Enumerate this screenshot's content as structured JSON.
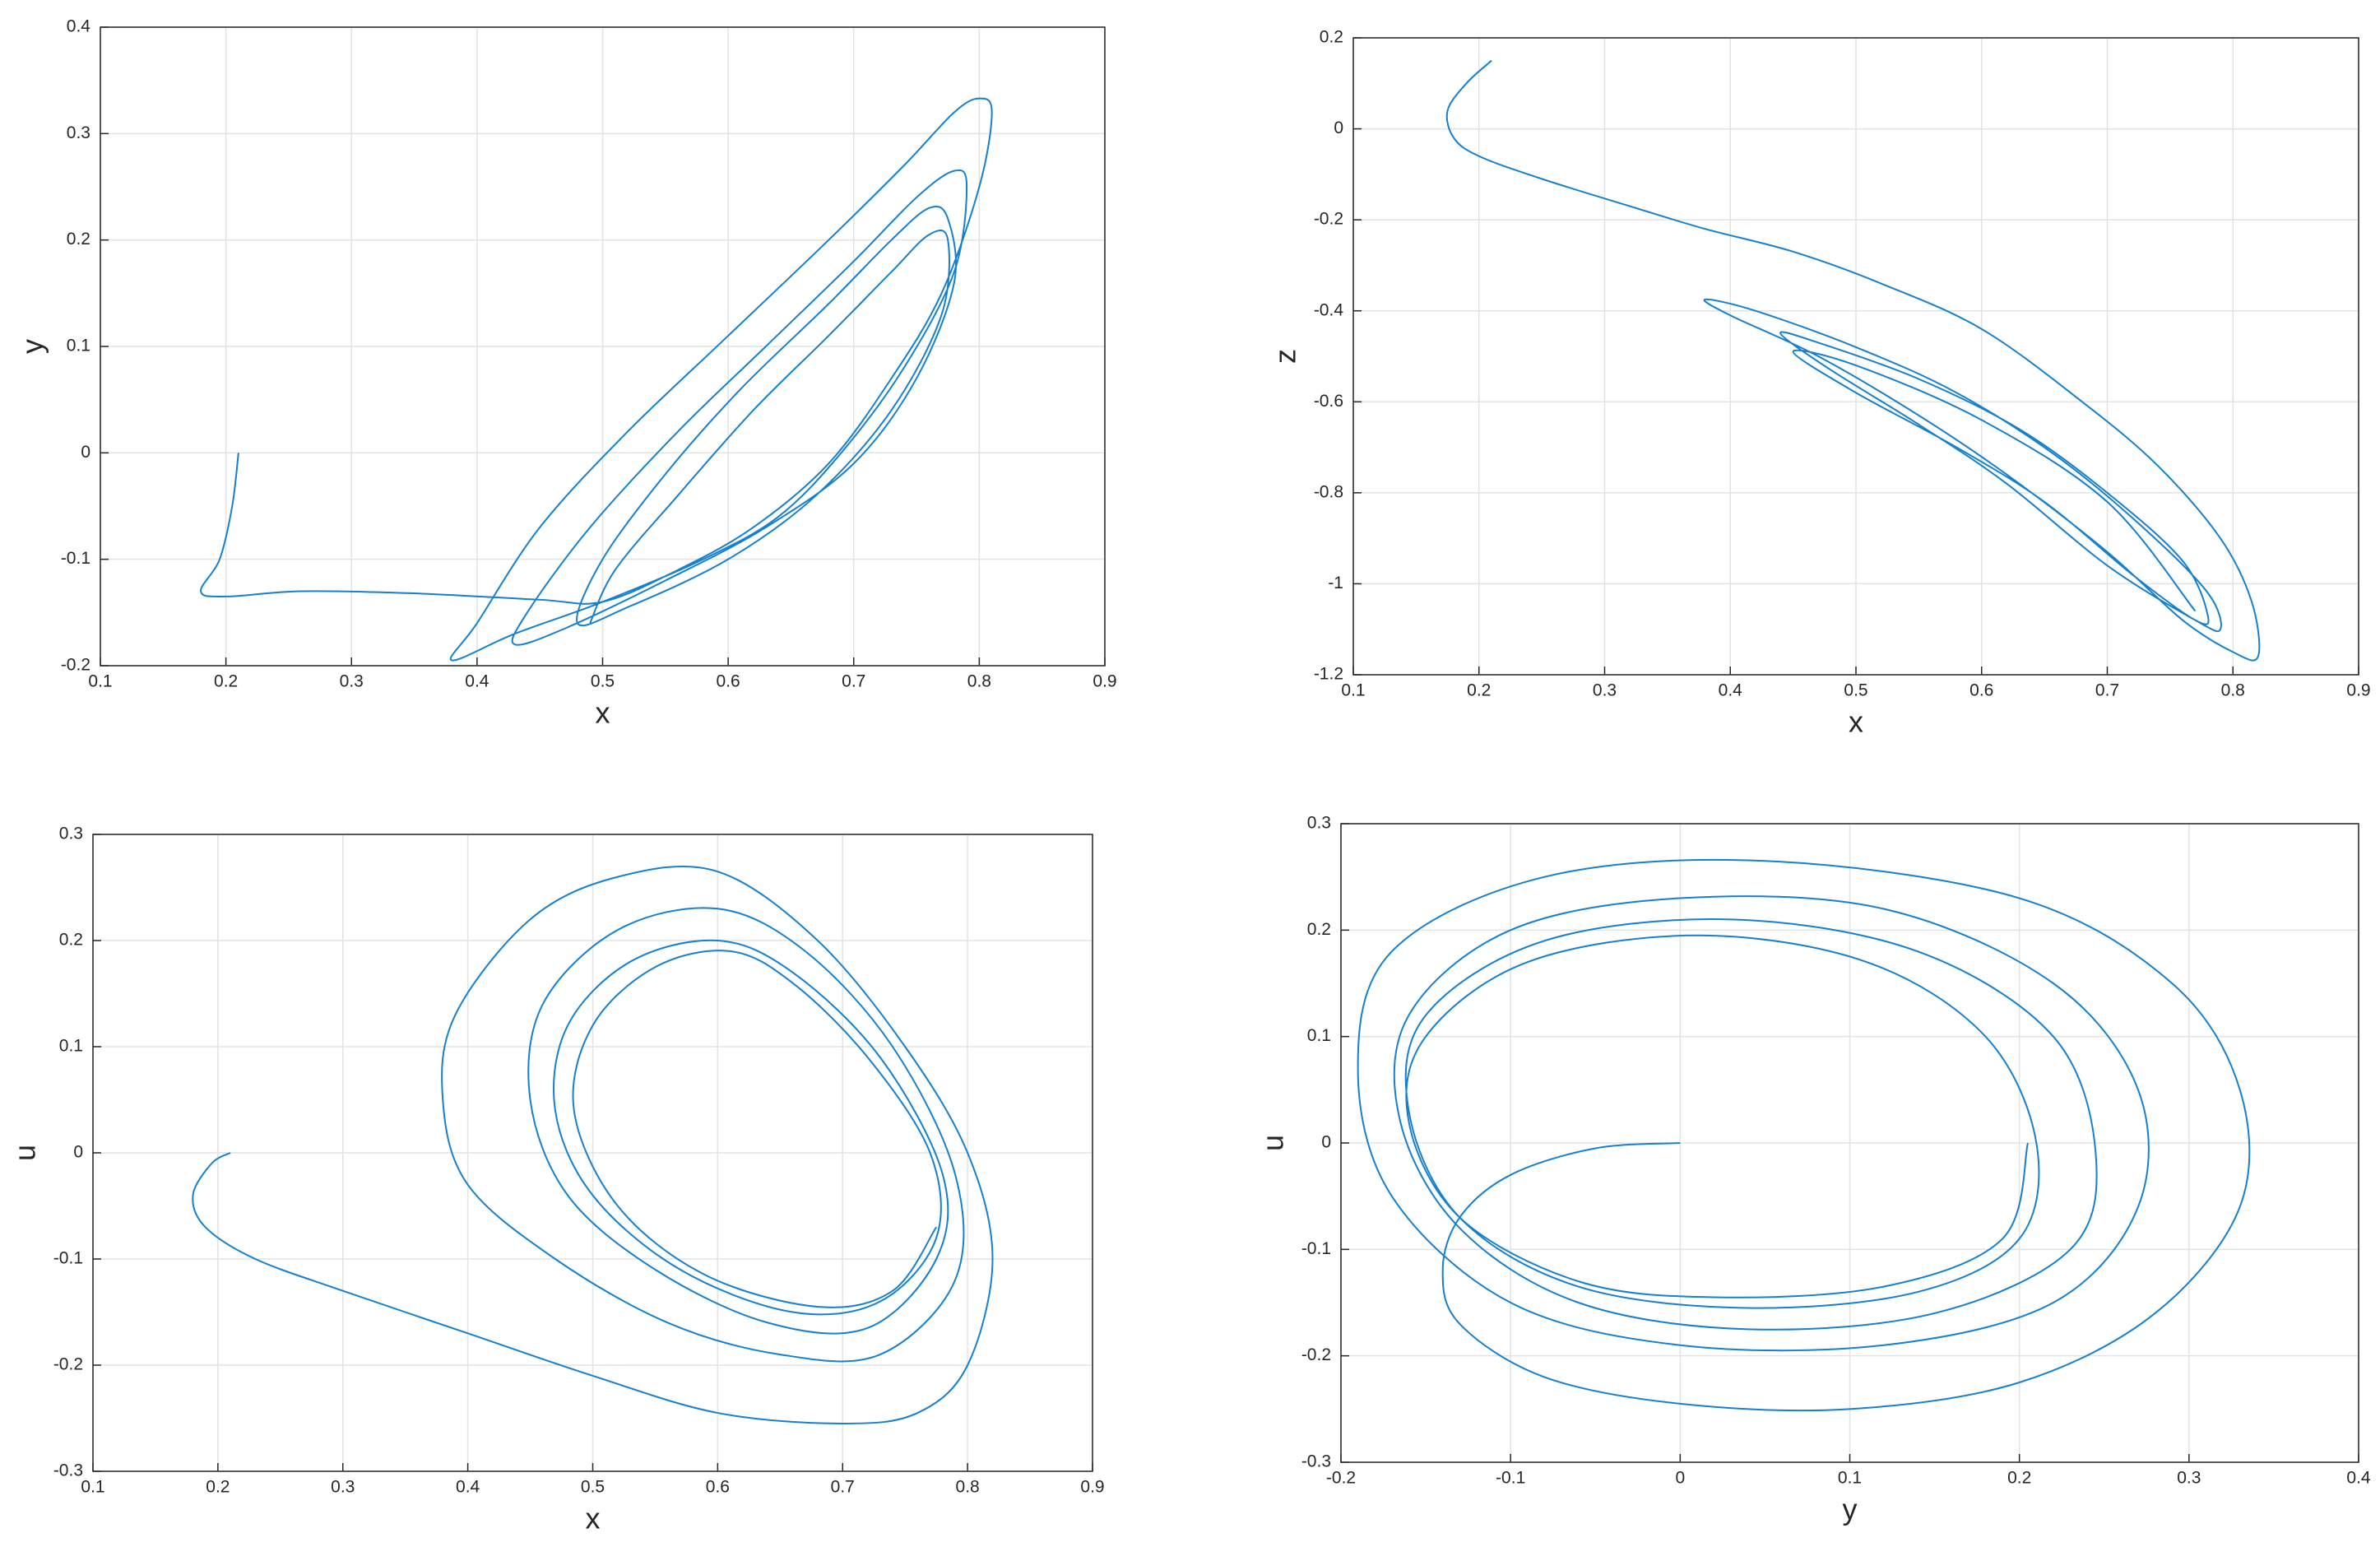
{
  "chart_data": [
    {
      "type": "line",
      "xlabel": "x",
      "ylabel": "y",
      "xlim": [
        0.1,
        0.9
      ],
      "ylim": [
        -0.2,
        0.4
      ],
      "xticks": [
        0.1,
        0.2,
        0.3,
        0.4,
        0.5,
        0.6,
        0.7,
        0.8,
        0.9
      ],
      "yticks": [
        -0.2,
        -0.1,
        0,
        0.1,
        0.2,
        0.3,
        0.4
      ],
      "grid": true,
      "series": [
        {
          "color": "#1580cf",
          "x": [
            0.21,
            0.205,
            0.195,
            0.18,
            0.2,
            0.26,
            0.35,
            0.45,
            0.5,
            0.56,
            0.62,
            0.68,
            0.73,
            0.77,
            0.8,
            0.81,
            0.8,
            0.78,
            0.74,
            0.68,
            0.6,
            0.52,
            0.45,
            0.4,
            0.38,
            0.43,
            0.5,
            0.58,
            0.64,
            0.69,
            0.74,
            0.78,
            0.79,
            0.78,
            0.75,
            0.7,
            0.63,
            0.56,
            0.49,
            0.44,
            0.43,
            0.47,
            0.55,
            0.63,
            0.7,
            0.75,
            0.78,
            0.775,
            0.76,
            0.73,
            0.68,
            0.61,
            0.55,
            0.5,
            0.48,
            0.52,
            0.6,
            0.67,
            0.73,
            0.77,
            0.775,
            0.76,
            0.73,
            0.68,
            0.62,
            0.56,
            0.51,
            0.49
          ],
          "values": [
            0,
            -0.05,
            -0.1,
            -0.13,
            -0.135,
            -0.13,
            -0.132,
            -0.138,
            -0.14,
            -0.11,
            -0.07,
            -0.01,
            0.07,
            0.15,
            0.25,
            0.32,
            0.333,
            0.32,
            0.27,
            0.2,
            0.11,
            0.02,
            -0.07,
            -0.16,
            -0.195,
            -0.17,
            -0.14,
            -0.1,
            -0.06,
            0,
            0.08,
            0.17,
            0.25,
            0.265,
            0.24,
            0.18,
            0.1,
            0.02,
            -0.07,
            -0.15,
            -0.18,
            -0.165,
            -0.12,
            -0.07,
            -0.01,
            0.07,
            0.16,
            0.22,
            0.23,
            0.2,
            0.14,
            0.06,
            -0.02,
            -0.1,
            -0.16,
            -0.145,
            -0.1,
            -0.04,
            0.04,
            0.13,
            0.2,
            0.205,
            0.17,
            0.11,
            0.04,
            -0.04,
            -0.11,
            -0.16
          ]
        }
      ]
    },
    {
      "type": "line",
      "xlabel": "x",
      "ylabel": "z",
      "xlim": [
        0.1,
        0.9
      ],
      "ylim": [
        -1.2,
        0.2
      ],
      "xticks": [
        0.1,
        0.2,
        0.3,
        0.4,
        0.5,
        0.6,
        0.7,
        0.8,
        0.9
      ],
      "yticks": [
        -1.2,
        -1,
        -0.8,
        -0.6,
        -0.4,
        -0.2,
        0,
        0.2
      ],
      "grid": true,
      "series": [
        {
          "color": "#1580cf",
          "x": [
            0.21,
            0.19,
            0.175,
            0.18,
            0.2,
            0.25,
            0.32,
            0.38,
            0.45,
            0.52,
            0.6,
            0.68,
            0.74,
            0.79,
            0.815,
            0.82,
            0.8,
            0.76,
            0.7,
            0.62,
            0.55,
            0.47,
            0.4,
            0.38,
            0.42,
            0.5,
            0.58,
            0.66,
            0.73,
            0.78,
            0.79,
            0.77,
            0.7,
            0.62,
            0.55,
            0.48,
            0.44,
            0.47,
            0.55,
            0.63,
            0.7,
            0.76,
            0.78,
            0.77,
            0.72,
            0.65,
            0.58,
            0.5,
            0.45,
            0.5,
            0.6,
            0.7,
            0.77
          ],
          "values": [
            0.15,
            0.1,
            0.04,
            -0.02,
            -0.06,
            -0.11,
            -0.17,
            -0.22,
            -0.27,
            -0.34,
            -0.44,
            -0.6,
            -0.74,
            -0.9,
            -1.04,
            -1.16,
            -1.15,
            -1.08,
            -0.93,
            -0.76,
            -0.63,
            -0.5,
            -0.41,
            -0.375,
            -0.4,
            -0.48,
            -0.58,
            -0.72,
            -0.88,
            -1.02,
            -1.1,
            -1.08,
            -0.96,
            -0.78,
            -0.65,
            -0.53,
            -0.45,
            -0.47,
            -0.55,
            -0.66,
            -0.8,
            -0.95,
            -1.07,
            -1.08,
            -0.98,
            -0.82,
            -0.7,
            -0.58,
            -0.49,
            -0.52,
            -0.64,
            -0.82,
            -1.06
          ]
        }
      ]
    },
    {
      "type": "line",
      "xlabel": "x",
      "ylabel": "u",
      "xlim": [
        0.1,
        0.9
      ],
      "ylim": [
        -0.3,
        0.3
      ],
      "xticks": [
        0.1,
        0.2,
        0.3,
        0.4,
        0.5,
        0.6,
        0.7,
        0.8,
        0.9
      ],
      "yticks": [
        -0.3,
        -0.2,
        -0.1,
        0,
        0.1,
        0.2,
        0.3
      ],
      "grid": true,
      "series": [
        {
          "color": "#1580cf",
          "x": [
            0.21,
            0.195,
            0.18,
            0.19,
            0.23,
            0.3,
            0.4,
            0.5,
            0.6,
            0.7,
            0.76,
            0.8,
            0.82,
            0.8,
            0.75,
            0.68,
            0.6,
            0.52,
            0.45,
            0.39,
            0.38,
            0.4,
            0.47,
            0.56,
            0.65,
            0.73,
            0.79,
            0.79,
            0.74,
            0.67,
            0.6,
            0.52,
            0.46,
            0.45,
            0.48,
            0.55,
            0.64,
            0.72,
            0.775,
            0.78,
            0.73,
            0.66,
            0.6,
            0.53,
            0.48,
            0.47,
            0.5,
            0.57,
            0.66,
            0.73,
            0.775,
            0.77,
            0.72,
            0.66,
            0.61,
            0.55,
            0.5,
            0.485,
            0.52,
            0.59,
            0.68,
            0.74,
            0.775
          ],
          "values": [
            0,
            -0.01,
            -0.04,
            -0.07,
            -0.1,
            -0.13,
            -0.17,
            -0.21,
            -0.245,
            -0.255,
            -0.245,
            -0.2,
            -0.1,
            0,
            0.1,
            0.2,
            0.265,
            0.26,
            0.22,
            0.13,
            0.05,
            -0.03,
            -0.1,
            -0.16,
            -0.19,
            -0.19,
            -0.12,
            -0.02,
            0.1,
            0.19,
            0.23,
            0.21,
            0.14,
            0.05,
            -0.04,
            -0.11,
            -0.16,
            -0.165,
            -0.1,
            -0.02,
            0.09,
            0.17,
            0.2,
            0.18,
            0.12,
            0.04,
            -0.04,
            -0.11,
            -0.15,
            -0.14,
            -0.08,
            0,
            0.09,
            0.16,
            0.19,
            0.175,
            0.12,
            0.04,
            -0.05,
            -0.115,
            -0.145,
            -0.13,
            -0.07
          ]
        }
      ]
    },
    {
      "type": "line",
      "xlabel": "y",
      "ylabel": "u",
      "xlim": [
        -0.2,
        0.4
      ],
      "ylim": [
        -0.3,
        0.3
      ],
      "xticks": [
        -0.2,
        -0.1,
        0,
        0.1,
        0.2,
        0.3,
        0.4
      ],
      "yticks": [
        -0.3,
        -0.2,
        -0.1,
        0,
        0.1,
        0.2,
        0.3
      ],
      "grid": true,
      "series": [
        {
          "color": "#1580cf",
          "x": [
            0,
            -0.05,
            -0.1,
            -0.13,
            -0.14,
            -0.13,
            -0.08,
            0,
            0.1,
            0.2,
            0.28,
            0.33,
            0.33,
            0.29,
            0.2,
            0.05,
            -0.08,
            -0.17,
            -0.19,
            -0.17,
            -0.1,
            0,
            0.12,
            0.22,
            0.27,
            0.27,
            0.22,
            0.12,
            0,
            -0.1,
            -0.16,
            -0.165,
            -0.13,
            -0.06,
            0.04,
            0.15,
            0.23,
            0.245,
            0.22,
            0.14,
            0.03,
            -0.08,
            -0.15,
            -0.16,
            -0.13,
            -0.06,
            0.04,
            0.14,
            0.2,
            0.21,
            0.18,
            0.11,
            0.01,
            -0.09,
            -0.15,
            -0.16,
            -0.13,
            -0.06,
            0.02,
            0.12,
            0.19,
            0.205
          ],
          "values": [
            0,
            -0.005,
            -0.03,
            -0.07,
            -0.12,
            -0.17,
            -0.22,
            -0.245,
            -0.25,
            -0.225,
            -0.16,
            -0.06,
            0.05,
            0.15,
            0.23,
            0.265,
            0.25,
            0.18,
            0.07,
            -0.05,
            -0.15,
            -0.19,
            -0.19,
            -0.15,
            -0.06,
            0.05,
            0.15,
            0.22,
            0.23,
            0.2,
            0.12,
            0.02,
            -0.08,
            -0.15,
            -0.175,
            -0.16,
            -0.1,
            -0.01,
            0.1,
            0.18,
            0.21,
            0.19,
            0.12,
            0.03,
            -0.07,
            -0.135,
            -0.155,
            -0.14,
            -0.09,
            0,
            0.1,
            0.17,
            0.195,
            0.17,
            0.1,
            0.02,
            -0.07,
            -0.13,
            -0.145,
            -0.135,
            -0.09,
            0
          ]
        }
      ]
    }
  ]
}
